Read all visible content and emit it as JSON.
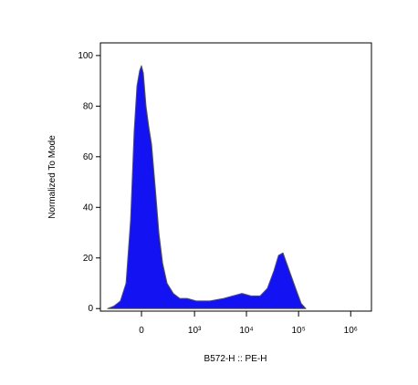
{
  "chart_data": {
    "type": "area",
    "x_label": "B572-H :: PE-H",
    "y_label": "Normalized To Mode",
    "xscale": "biexponential",
    "x": [
      -410,
      -297,
      -208,
      -143,
      -97,
      -64,
      -39,
      -16,
      0,
      16,
      39,
      63,
      89,
      125,
      164,
      208,
      269,
      372,
      509,
      717,
      1082,
      1980,
      3650,
      5470,
      8220,
      12260,
      18300,
      25200,
      33700,
      41200,
      50200,
      61300,
      74900,
      91500,
      112500,
      137900
    ],
    "series": [
      {
        "color": "#1212f2",
        "values": [
          0,
          1,
          3,
          10,
          35,
          70,
          88,
          94,
          96,
          93,
          80,
          72,
          65,
          48,
          30,
          18,
          10,
          6,
          4,
          4,
          3,
          3,
          4,
          5,
          6,
          5,
          5,
          8,
          15,
          21,
          22,
          17,
          12,
          7,
          2,
          0
        ]
      }
    ],
    "xlim": [
      -580,
      2500000
    ],
    "xticks": [
      0,
      {
        "value": 1000,
        "label": "10³"
      },
      {
        "value": 10000,
        "label": "10⁴"
      },
      {
        "value": 100000,
        "label": "10⁵"
      },
      {
        "value": 1000000,
        "label": "10⁶"
      }
    ],
    "ylim": [
      -1,
      105
    ],
    "yticks": [
      0,
      20,
      40,
      60,
      80,
      100
    ]
  }
}
